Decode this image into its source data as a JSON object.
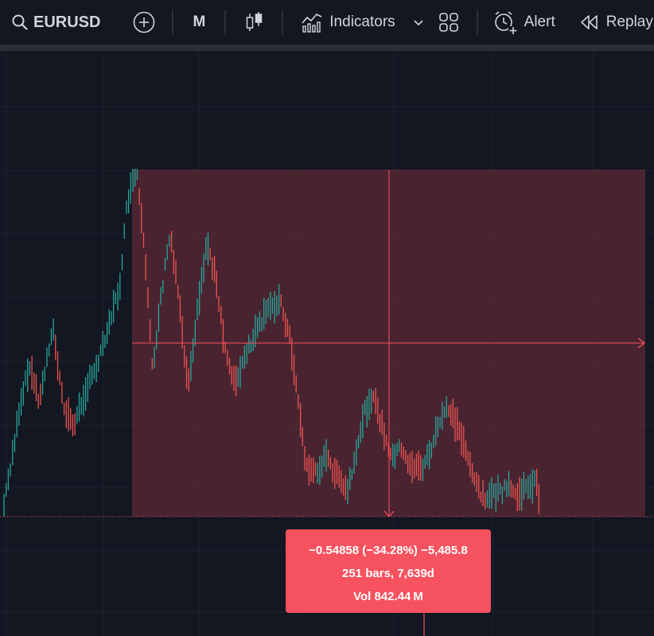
{
  "toolbar": {
    "symbol": "EURUSD",
    "interval": "M",
    "indicators_label": "Indicators",
    "alert_label": "Alert",
    "replay_label": "Replay"
  },
  "icons": {
    "symbol_search": "search-icon",
    "compare": "plus-circle-icon",
    "chart_type": "candles-icon",
    "indicators": "indicators-icon",
    "dropdown": "chevron-down-icon",
    "layouts": "grid-icon",
    "alert": "alarm-plus-icon",
    "replay": "replay-icon"
  },
  "measure": {
    "change_text": "−0.54858 (−34.28%) −5,485.8",
    "bars_text": "251 bars, 7,639d",
    "volume_text": "Vol 842.44 M"
  },
  "colors": {
    "background": "#131722",
    "up_bar": "#26a69a",
    "down_bar": "#ef5350",
    "measure_fill": "#5c2a35",
    "measure_tooltip": "#f7525f"
  }
}
